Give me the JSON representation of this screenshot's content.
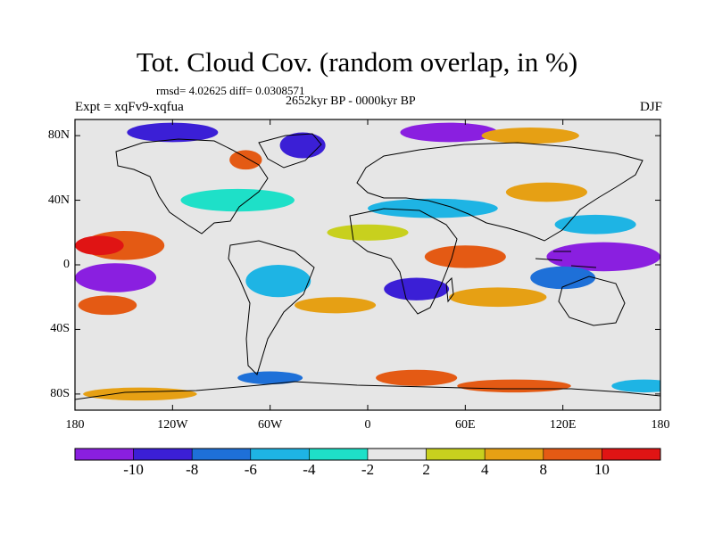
{
  "header": {
    "title": "Tot. Cloud Cov. (random overlap, in %)",
    "stats": "rmsd= 4.02625 diff= 0.0308571",
    "experiment": "Expt = xqFv9-xqfua",
    "period": "2652kyr BP - 0000kyr BP",
    "season": "DJF"
  },
  "map": {
    "lat_labels": [
      "80N",
      "40N",
      "0",
      "40S",
      "80S"
    ],
    "lat_values": [
      80,
      40,
      0,
      -40,
      -80
    ],
    "lon_labels": [
      "180",
      "120W",
      "60W",
      "0",
      "60E",
      "120E",
      "180"
    ],
    "lon_values": [
      -180,
      -120,
      -60,
      0,
      60,
      120,
      180
    ],
    "background_color": "#e6e6e6"
  },
  "colorbar": {
    "labels": [
      "-10",
      "-8",
      "-6",
      "-4",
      "-2",
      "2",
      "4",
      "8",
      "10"
    ],
    "colors": [
      "#8a1fe0",
      "#3b1fd6",
      "#1e70d8",
      "#1eb4e4",
      "#1ee0c8",
      "#e6e6e6",
      "#c8d01e",
      "#e6a014",
      "#e45a14",
      "#e01414"
    ]
  },
  "anomaly_fields": [
    {
      "lon": 50,
      "lat": 82,
      "rx": 30,
      "ry": 6,
      "level": "-10"
    },
    {
      "lon": -120,
      "lat": 82,
      "rx": 28,
      "ry": 6,
      "level": "-8"
    },
    {
      "lon": -40,
      "lat": 74,
      "rx": 14,
      "ry": 8,
      "level": "-8"
    },
    {
      "lon": -75,
      "lat": 65,
      "rx": 10,
      "ry": 6,
      "level": "8"
    },
    {
      "lon": 100,
      "lat": 80,
      "rx": 30,
      "ry": 5,
      "level": "4"
    },
    {
      "lon": -80,
      "lat": 40,
      "rx": 35,
      "ry": 7,
      "level": "-2"
    },
    {
      "lon": 40,
      "lat": 35,
      "rx": 40,
      "ry": 6,
      "level": "-4"
    },
    {
      "lon": 110,
      "lat": 45,
      "rx": 25,
      "ry": 6,
      "level": "4"
    },
    {
      "lon": -150,
      "lat": 12,
      "rx": 25,
      "ry": 9,
      "level": "8"
    },
    {
      "lon": -165,
      "lat": 12,
      "rx": 15,
      "ry": 6,
      "level": "10"
    },
    {
      "lon": -155,
      "lat": -8,
      "rx": 25,
      "ry": 9,
      "level": "-10"
    },
    {
      "lon": -160,
      "lat": -25,
      "rx": 18,
      "ry": 6,
      "level": "8"
    },
    {
      "lon": 145,
      "lat": 5,
      "rx": 35,
      "ry": 9,
      "level": "-10"
    },
    {
      "lon": 120,
      "lat": -8,
      "rx": 20,
      "ry": 7,
      "level": "-6"
    },
    {
      "lon": 140,
      "lat": 25,
      "rx": 25,
      "ry": 6,
      "level": "-4"
    },
    {
      "lon": 60,
      "lat": 5,
      "rx": 25,
      "ry": 7,
      "level": "8"
    },
    {
      "lon": 30,
      "lat": -15,
      "rx": 20,
      "ry": 7,
      "level": "-8"
    },
    {
      "lon": 80,
      "lat": -20,
      "rx": 30,
      "ry": 6,
      "level": "4"
    },
    {
      "lon": -55,
      "lat": -10,
      "rx": 20,
      "ry": 10,
      "level": "-4"
    },
    {
      "lon": -20,
      "lat": -25,
      "rx": 25,
      "ry": 5,
      "level": "4"
    },
    {
      "lon": 0,
      "lat": 20,
      "rx": 25,
      "ry": 5,
      "level": "2"
    },
    {
      "lon": 30,
      "lat": -70,
      "rx": 25,
      "ry": 5,
      "level": "8"
    },
    {
      "lon": -60,
      "lat": -70,
      "rx": 20,
      "ry": 4,
      "level": "-6"
    },
    {
      "lon": 90,
      "lat": -75,
      "rx": 35,
      "ry": 4,
      "level": "8"
    },
    {
      "lon": 170,
      "lat": -75,
      "rx": 20,
      "ry": 4,
      "level": "-4"
    },
    {
      "lon": -140,
      "lat": -80,
      "rx": 35,
      "ry": 4,
      "level": "4"
    }
  ]
}
